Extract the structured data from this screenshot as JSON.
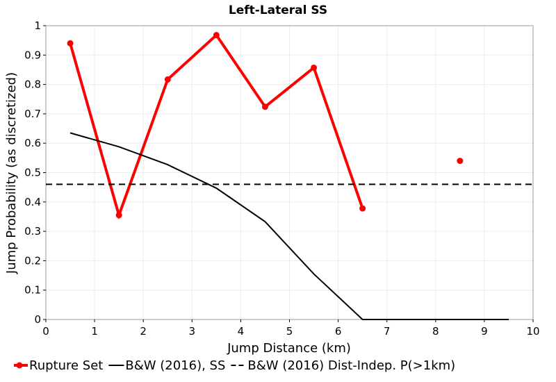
{
  "chart_data": {
    "type": "line",
    "title": "Left-Lateral SS",
    "xlabel": "Jump Distance (km)",
    "ylabel": "Jump Probability (as discretized)",
    "xlim": [
      0,
      10
    ],
    "ylim": [
      0,
      1
    ],
    "x_ticks": [
      "0",
      "1",
      "2",
      "3",
      "4",
      "5",
      "6",
      "7",
      "8",
      "9",
      "10"
    ],
    "y_ticks": [
      "0",
      "0.1",
      "0.2",
      "0.3",
      "0.4",
      "0.5",
      "0.6",
      "0.7",
      "0.8",
      "0.9",
      "1"
    ],
    "grid": true,
    "legend_position": "bottom",
    "series": [
      {
        "name": "Rupture Set",
        "color": "#ff0000",
        "style": "solid-with-markers",
        "segments": [
          {
            "x": [
              0.5,
              1.5,
              2.5,
              3.5,
              4.5,
              5.5,
              6.5
            ],
            "y": [
              0.94,
              0.355,
              0.817,
              0.968,
              0.724,
              0.857,
              0.378
            ]
          },
          {
            "x": [
              8.5
            ],
            "y": [
              0.54
            ]
          }
        ]
      },
      {
        "name": "B&W (2016), SS",
        "color": "#000000",
        "style": "solid",
        "segments": [
          {
            "x": [
              0.5,
              1.5,
              2.5,
              3.5,
              4.5,
              5.5,
              6.5,
              7.5,
              8.5,
              9.5
            ],
            "y": [
              0.635,
              0.588,
              0.527,
              0.447,
              0.333,
              0.155,
              0.0,
              0.0,
              0.0,
              0.0
            ]
          }
        ]
      },
      {
        "name": "B&W (2016) Dist-Indep. P(>1km)",
        "color": "#000000",
        "style": "dashed",
        "segments": [
          {
            "x": [
              0,
              10
            ],
            "y": [
              0.46,
              0.46
            ]
          }
        ]
      }
    ]
  }
}
